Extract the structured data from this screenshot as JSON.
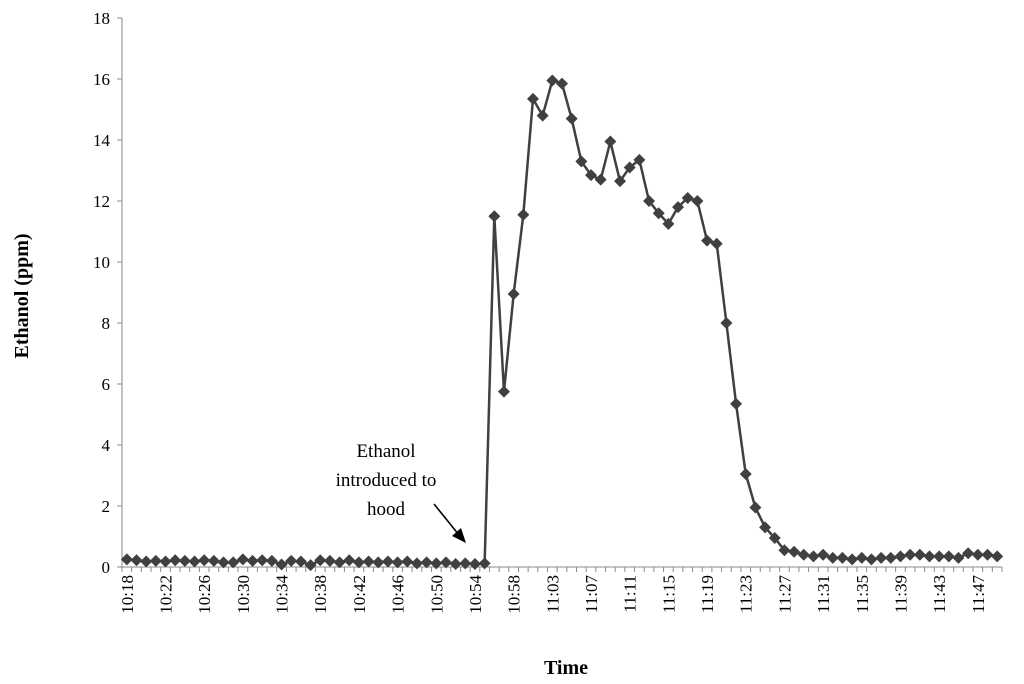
{
  "chart_data": {
    "type": "line",
    "title": "",
    "xlabel": "Time",
    "ylabel": "Ethanol (ppm)",
    "ylim": [
      0,
      18
    ],
    "yticks": [
      0,
      2,
      4,
      6,
      8,
      10,
      12,
      14,
      16,
      18
    ],
    "grid": false,
    "legend": "none",
    "x_tick_labels": [
      "10:18",
      "10:22",
      "10:26",
      "10:30",
      "10:34",
      "10:38",
      "10:42",
      "10:46",
      "10:50",
      "10:54",
      "10:58",
      "11:03",
      "11:07",
      "11:11",
      "11:15",
      "11:19",
      "11:23",
      "11:27",
      "11:31",
      "11:35",
      "11:39",
      "11:43",
      "11:47"
    ],
    "series": [
      {
        "color": "#404040",
        "marker": "diamond",
        "values": [
          0.25,
          0.22,
          0.18,
          0.2,
          0.18,
          0.22,
          0.2,
          0.18,
          0.22,
          0.2,
          0.15,
          0.15,
          0.25,
          0.2,
          0.22,
          0.2,
          0.08,
          0.2,
          0.18,
          0.06,
          0.22,
          0.2,
          0.15,
          0.22,
          0.15,
          0.18,
          0.15,
          0.18,
          0.15,
          0.18,
          0.12,
          0.15,
          0.12,
          0.15,
          0.1,
          0.12,
          0.1,
          0.12,
          11.5,
          5.75,
          8.95,
          11.55,
          15.35,
          14.8,
          15.95,
          15.85,
          14.7,
          13.3,
          12.85,
          12.7,
          13.95,
          12.65,
          13.1,
          13.35,
          12.0,
          11.6,
          11.25,
          11.8,
          12.1,
          12.0,
          10.7,
          10.6,
          8.0,
          5.35,
          3.05,
          1.95,
          1.3,
          0.95,
          0.55,
          0.5,
          0.4,
          0.35,
          0.4,
          0.3,
          0.3,
          0.25,
          0.3,
          0.25,
          0.3,
          0.3,
          0.35,
          0.4,
          0.4,
          0.35,
          0.35,
          0.35,
          0.3,
          0.45,
          0.4,
          0.4,
          0.35
        ]
      }
    ],
    "annotations": [
      {
        "lines": [
          "Ethanol",
          "introduced to",
          "hood"
        ]
      }
    ]
  }
}
